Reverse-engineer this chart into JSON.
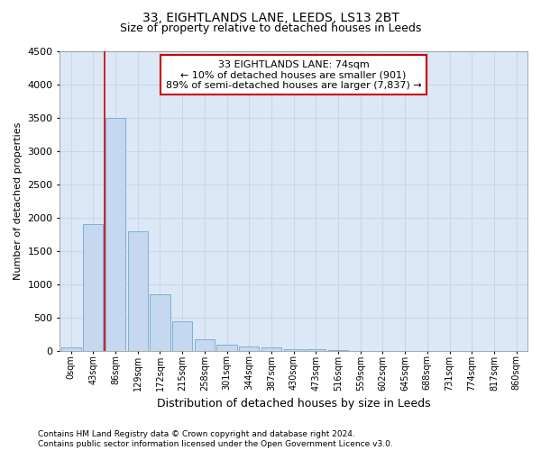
{
  "title_line1": "33, EIGHTLANDS LANE, LEEDS, LS13 2BT",
  "title_line2": "Size of property relative to detached houses in Leeds",
  "xlabel": "Distribution of detached houses by size in Leeds",
  "ylabel": "Number of detached properties",
  "footnote": "Contains HM Land Registry data © Crown copyright and database right 2024.\nContains public sector information licensed under the Open Government Licence v3.0.",
  "bar_labels": [
    "0sqm",
    "43sqm",
    "86sqm",
    "129sqm",
    "172sqm",
    "215sqm",
    "258sqm",
    "301sqm",
    "344sqm",
    "387sqm",
    "430sqm",
    "473sqm",
    "516sqm",
    "559sqm",
    "602sqm",
    "645sqm",
    "688sqm",
    "731sqm",
    "774sqm",
    "817sqm",
    "860sqm"
  ],
  "bar_values": [
    50,
    1900,
    3500,
    1800,
    850,
    450,
    175,
    100,
    75,
    50,
    30,
    25,
    10,
    5,
    3,
    2,
    1,
    1,
    1,
    0,
    0
  ],
  "bar_color": "#c5d8ef",
  "bar_edge_color": "#7fafd4",
  "grid_color": "#c8d8e8",
  "background_color": "#dce8f5",
  "annotation_box_text": "33 EIGHTLANDS LANE: 74sqm\n← 10% of detached houses are smaller (901)\n89% of semi-detached houses are larger (7,837) →",
  "annotation_box_color": "#cc0000",
  "vline_x": 1.5,
  "ylim": [
    0,
    4500
  ],
  "yticks": [
    0,
    500,
    1000,
    1500,
    2000,
    2500,
    3000,
    3500,
    4000,
    4500
  ],
  "title1_fontsize": 10,
  "title2_fontsize": 9,
  "ylabel_fontsize": 8,
  "xlabel_fontsize": 9,
  "ytick_fontsize": 8,
  "xtick_fontsize": 7,
  "annot_fontsize": 8,
  "footnote_fontsize": 6.5
}
